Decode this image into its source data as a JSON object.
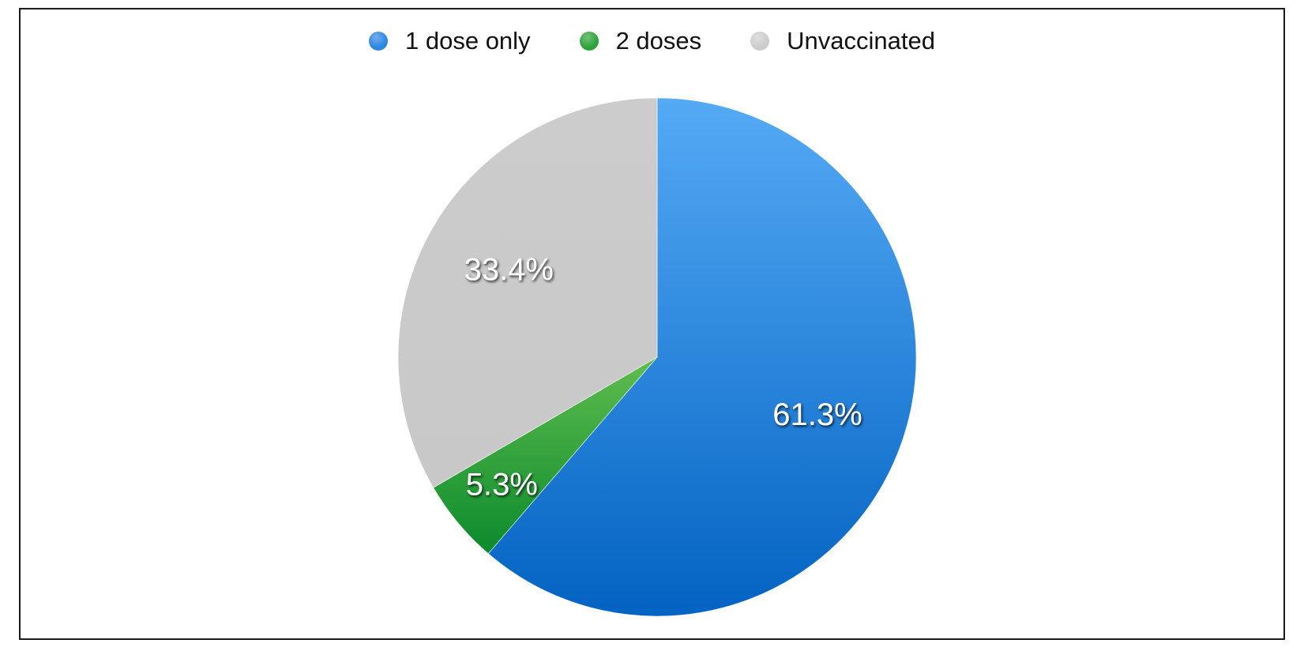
{
  "chart_data": {
    "type": "pie",
    "title": "",
    "legend_position": "top-center",
    "start_angle_deg": 0,
    "direction": "clockwise",
    "slices": [
      {
        "name": "1 dose only",
        "value": 61.3,
        "label": "61.3%",
        "color": "#1f7fdc"
      },
      {
        "name": "2 doses",
        "value": 5.3,
        "label": "5.3%",
        "color": "#2da23a"
      },
      {
        "name": "Unvaccinated",
        "value": 33.4,
        "label": "33.4%",
        "color": "#cbcbcb"
      }
    ]
  },
  "legend": [
    {
      "label": "1 dose only",
      "color": "#2b86e0"
    },
    {
      "label": "2 doses",
      "color": "#2da23a"
    },
    {
      "label": "Unvaccinated",
      "color": "#cccccc"
    }
  ]
}
